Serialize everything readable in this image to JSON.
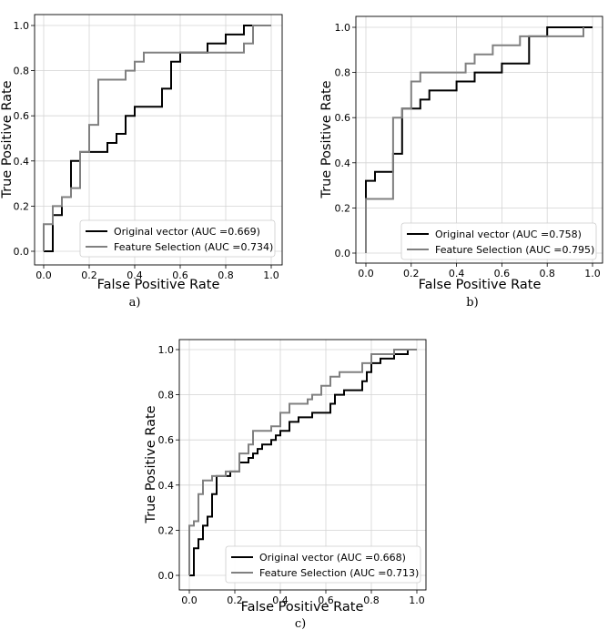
{
  "chart_data": [
    {
      "type": "line",
      "caption": "a)",
      "xlabel": "False Positive Rate",
      "ylabel": "True Positive Rate",
      "xlim": [
        0,
        1
      ],
      "ylim": [
        0,
        1
      ],
      "xticks": [
        "0.0",
        "0.2",
        "0.4",
        "0.6",
        "0.8",
        "1.0"
      ],
      "yticks": [
        "0.0",
        "0.2",
        "0.4",
        "0.6",
        "0.8",
        "1.0"
      ],
      "grid": true,
      "legend": "lower-right",
      "series": [
        {
          "name": "Original vector (AUC =0.669)",
          "color": "#000000",
          "x": [
            0,
            0.04,
            0.04,
            0.08,
            0.08,
            0.12,
            0.12,
            0.16,
            0.16,
            0.28,
            0.28,
            0.32,
            0.32,
            0.36,
            0.36,
            0.4,
            0.4,
            0.52,
            0.52,
            0.56,
            0.56,
            0.6,
            0.6,
            0.72,
            0.72,
            0.8,
            0.8,
            0.84,
            0.84,
            0.88,
            0.88,
            1.0
          ],
          "y": [
            0,
            0,
            0.16,
            0.16,
            0.24,
            0.24,
            0.4,
            0.4,
            0.44,
            0.44,
            0.48,
            0.48,
            0.52,
            0.52,
            0.6,
            0.6,
            0.64,
            0.64,
            0.72,
            0.72,
            0.84,
            0.84,
            0.88,
            0.88,
            0.92,
            0.92,
            0.96,
            0.96,
            0.96,
            0.96,
            1.0,
            1.0
          ]
        },
        {
          "name": "Feature Selection (AUC =0.734)",
          "color": "#808080",
          "x": [
            0,
            0,
            0.04,
            0.04,
            0.08,
            0.08,
            0.12,
            0.12,
            0.16,
            0.16,
            0.2,
            0.2,
            0.24,
            0.24,
            0.36,
            0.36,
            0.4,
            0.4,
            0.44,
            0.44,
            0.56,
            0.56,
            0.88,
            0.88,
            0.92,
            0.92,
            1.0
          ],
          "y": [
            0,
            0.12,
            0.12,
            0.2,
            0.2,
            0.24,
            0.24,
            0.28,
            0.28,
            0.44,
            0.44,
            0.56,
            0.56,
            0.76,
            0.76,
            0.8,
            0.8,
            0.84,
            0.84,
            0.88,
            0.88,
            0.88,
            0.88,
            0.92,
            0.92,
            1.0,
            1.0
          ]
        }
      ]
    },
    {
      "type": "line",
      "caption": "b)",
      "xlabel": "False Positive Rate",
      "ylabel": "True Positive Rate",
      "xlim": [
        0,
        1
      ],
      "ylim": [
        0,
        1
      ],
      "xticks": [
        "0.0",
        "0.2",
        "0.4",
        "0.6",
        "0.8",
        "1.0"
      ],
      "yticks": [
        "0.0",
        "0.2",
        "0.4",
        "0.6",
        "0.8",
        "1.0"
      ],
      "grid": true,
      "legend": "lower-right",
      "series": [
        {
          "name": "Original vector (AUC =0.758)",
          "color": "#000000",
          "x": [
            0,
            0,
            0.04,
            0.04,
            0.12,
            0.12,
            0.16,
            0.16,
            0.24,
            0.24,
            0.28,
            0.28,
            0.4,
            0.4,
            0.48,
            0.48,
            0.6,
            0.6,
            0.72,
            0.72,
            0.8,
            0.8,
            0.96,
            0.96,
            1.0
          ],
          "y": [
            0,
            0.32,
            0.32,
            0.36,
            0.36,
            0.44,
            0.44,
            0.64,
            0.64,
            0.68,
            0.68,
            0.72,
            0.72,
            0.76,
            0.76,
            0.8,
            0.8,
            0.84,
            0.84,
            0.96,
            0.96,
            1.0,
            1.0,
            1.0,
            1.0
          ]
        },
        {
          "name": "Feature Selection (AUC =0.795)",
          "color": "#808080",
          "x": [
            0,
            0,
            0.12,
            0.12,
            0.16,
            0.16,
            0.2,
            0.2,
            0.24,
            0.24,
            0.44,
            0.44,
            0.48,
            0.48,
            0.56,
            0.56,
            0.68,
            0.68,
            0.96,
            0.96
          ],
          "y": [
            0,
            0.24,
            0.24,
            0.6,
            0.6,
            0.64,
            0.64,
            0.76,
            0.76,
            0.8,
            0.8,
            0.84,
            0.84,
            0.88,
            0.88,
            0.92,
            0.92,
            0.96,
            0.96,
            1.0
          ]
        }
      ]
    },
    {
      "type": "line",
      "caption": "c)",
      "xlabel": "False Positive Rate",
      "ylabel": "True Positive Rate",
      "xlim": [
        0,
        1
      ],
      "ylim": [
        0,
        1
      ],
      "xticks": [
        "0.0",
        "0.2",
        "0.4",
        "0.6",
        "0.8",
        "1.0"
      ],
      "yticks": [
        "0.0",
        "0.2",
        "0.4",
        "0.6",
        "0.8",
        "1.0"
      ],
      "grid": true,
      "legend": "lower-right",
      "series": [
        {
          "name": "Original vector (AUC =0.668)",
          "color": "#000000",
          "x": [
            0,
            0.02,
            0.02,
            0.04,
            0.04,
            0.06,
            0.06,
            0.08,
            0.08,
            0.1,
            0.1,
            0.12,
            0.12,
            0.18,
            0.18,
            0.22,
            0.22,
            0.26,
            0.26,
            0.28,
            0.28,
            0.3,
            0.3,
            0.32,
            0.32,
            0.36,
            0.36,
            0.38,
            0.38,
            0.4,
            0.4,
            0.44,
            0.44,
            0.48,
            0.48,
            0.54,
            0.54,
            0.62,
            0.62,
            0.64,
            0.64,
            0.68,
            0.68,
            0.76,
            0.76,
            0.78,
            0.78,
            0.8,
            0.8,
            0.84,
            0.84,
            0.9,
            0.9,
            0.96,
            0.96,
            1.0
          ],
          "y": [
            0,
            0,
            0.12,
            0.12,
            0.16,
            0.16,
            0.22,
            0.22,
            0.26,
            0.26,
            0.36,
            0.36,
            0.44,
            0.44,
            0.46,
            0.46,
            0.5,
            0.5,
            0.52,
            0.52,
            0.54,
            0.54,
            0.56,
            0.56,
            0.58,
            0.58,
            0.6,
            0.6,
            0.62,
            0.62,
            0.64,
            0.64,
            0.68,
            0.68,
            0.7,
            0.7,
            0.72,
            0.72,
            0.76,
            0.76,
            0.8,
            0.8,
            0.82,
            0.82,
            0.86,
            0.86,
            0.9,
            0.9,
            0.94,
            0.94,
            0.96,
            0.96,
            0.98,
            0.98,
            1.0,
            1.0
          ]
        },
        {
          "name": "Feature Selection (AUC =0.713)",
          "color": "#808080",
          "x": [
            0,
            0,
            0.02,
            0.02,
            0.04,
            0.04,
            0.06,
            0.06,
            0.1,
            0.1,
            0.16,
            0.16,
            0.22,
            0.22,
            0.26,
            0.26,
            0.28,
            0.28,
            0.36,
            0.36,
            0.4,
            0.4,
            0.44,
            0.44,
            0.52,
            0.52,
            0.54,
            0.54,
            0.58,
            0.58,
            0.62,
            0.62,
            0.66,
            0.66,
            0.76,
            0.76,
            0.8,
            0.8,
            0.9,
            0.9,
            1.0
          ],
          "y": [
            0,
            0.22,
            0.22,
            0.24,
            0.24,
            0.36,
            0.36,
            0.42,
            0.42,
            0.44,
            0.44,
            0.46,
            0.46,
            0.54,
            0.54,
            0.58,
            0.58,
            0.64,
            0.64,
            0.66,
            0.66,
            0.72,
            0.72,
            0.76,
            0.76,
            0.78,
            0.78,
            0.8,
            0.8,
            0.84,
            0.84,
            0.88,
            0.88,
            0.9,
            0.9,
            0.94,
            0.94,
            0.98,
            0.98,
            1.0,
            1.0
          ]
        }
      ]
    }
  ]
}
